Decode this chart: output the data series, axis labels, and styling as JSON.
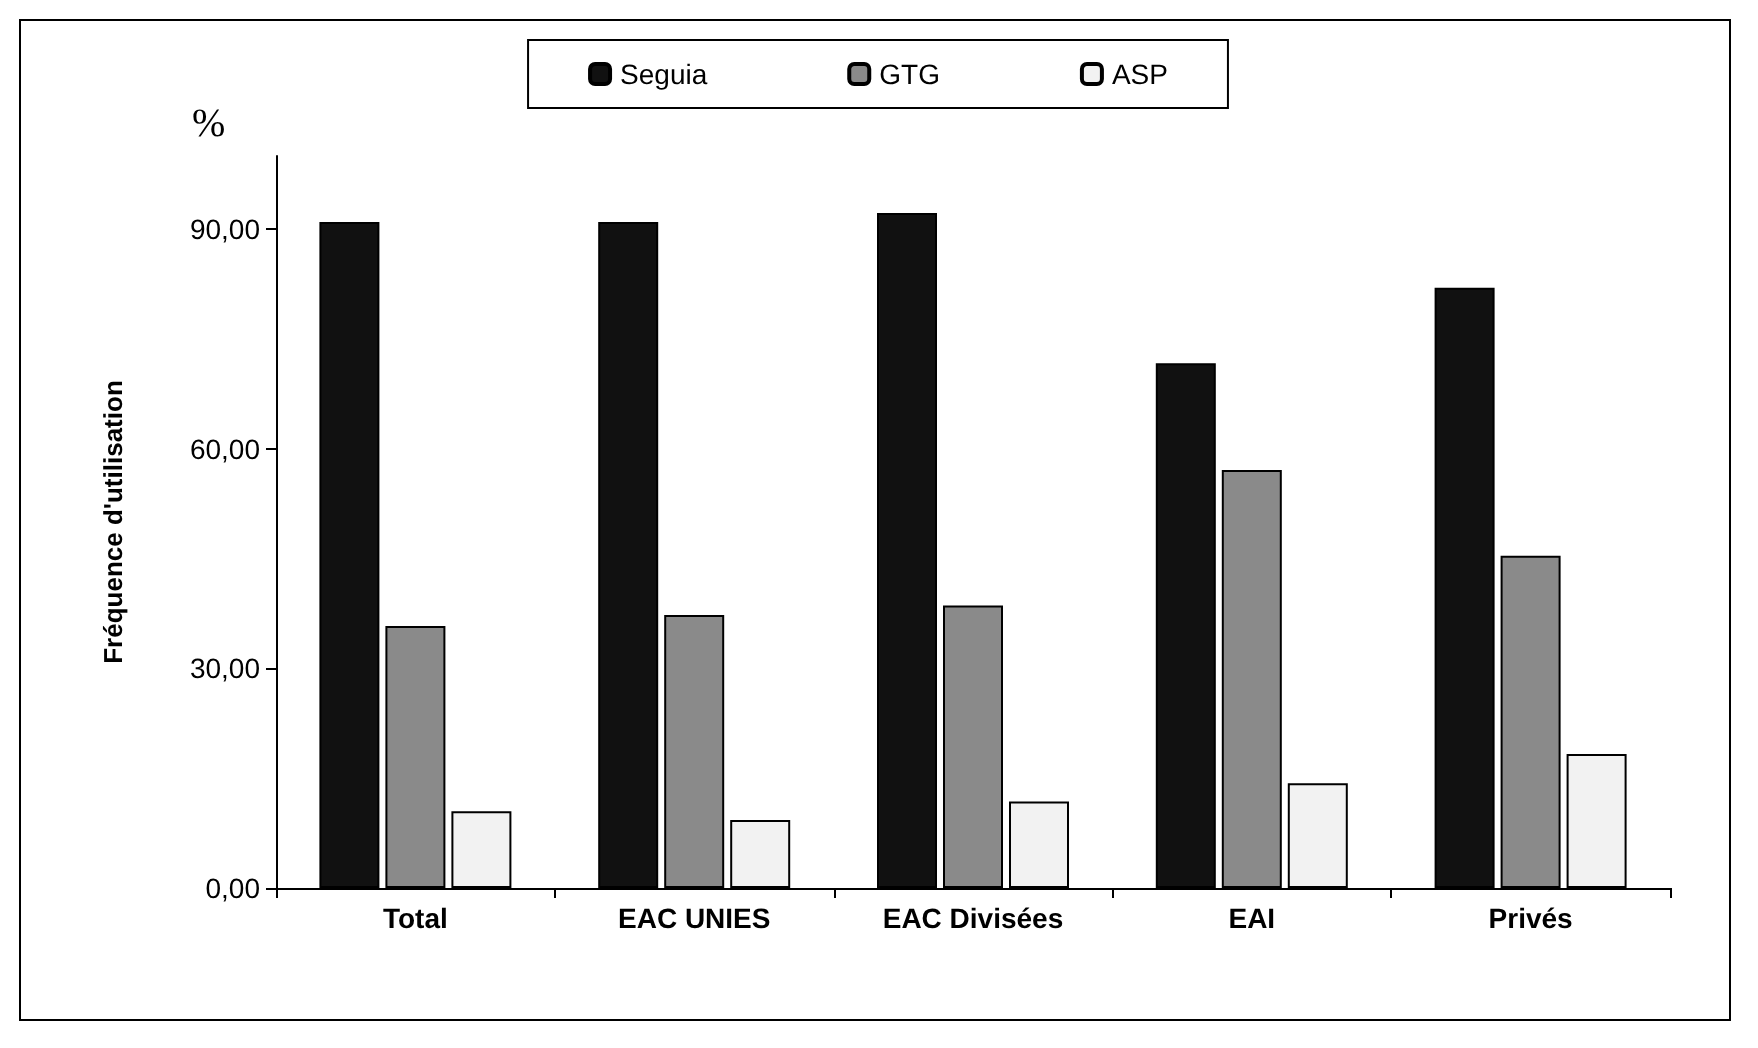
{
  "chart_data": {
    "type": "bar",
    "ylabel": "Fréquence d'utilisation",
    "annotations": [
      "%"
    ],
    "categories": [
      "Total",
      "EAC UNIES",
      "EAC Divisées",
      "EAI",
      "Privés"
    ],
    "series": [
      {
        "name": "Seguia",
        "color": "#111111",
        "values": [
          91.0,
          91.0,
          92.2,
          71.7,
          82.0
        ]
      },
      {
        "name": "GTG",
        "color": "#8a8a8a",
        "values": [
          35.8,
          37.3,
          38.6,
          57.1,
          45.4
        ]
      },
      {
        "name": "ASP",
        "color": "#f2f2f2",
        "values": [
          10.5,
          9.3,
          11.8,
          14.3,
          18.3
        ]
      }
    ],
    "ylim": [
      0,
      100
    ],
    "yticks": [
      {
        "value": 0,
        "label": "0,00"
      },
      {
        "value": 30,
        "label": "30,00"
      },
      {
        "value": 60,
        "label": "60,00"
      },
      {
        "value": 90,
        "label": "90,00"
      }
    ],
    "grid": false,
    "legend": "top"
  }
}
